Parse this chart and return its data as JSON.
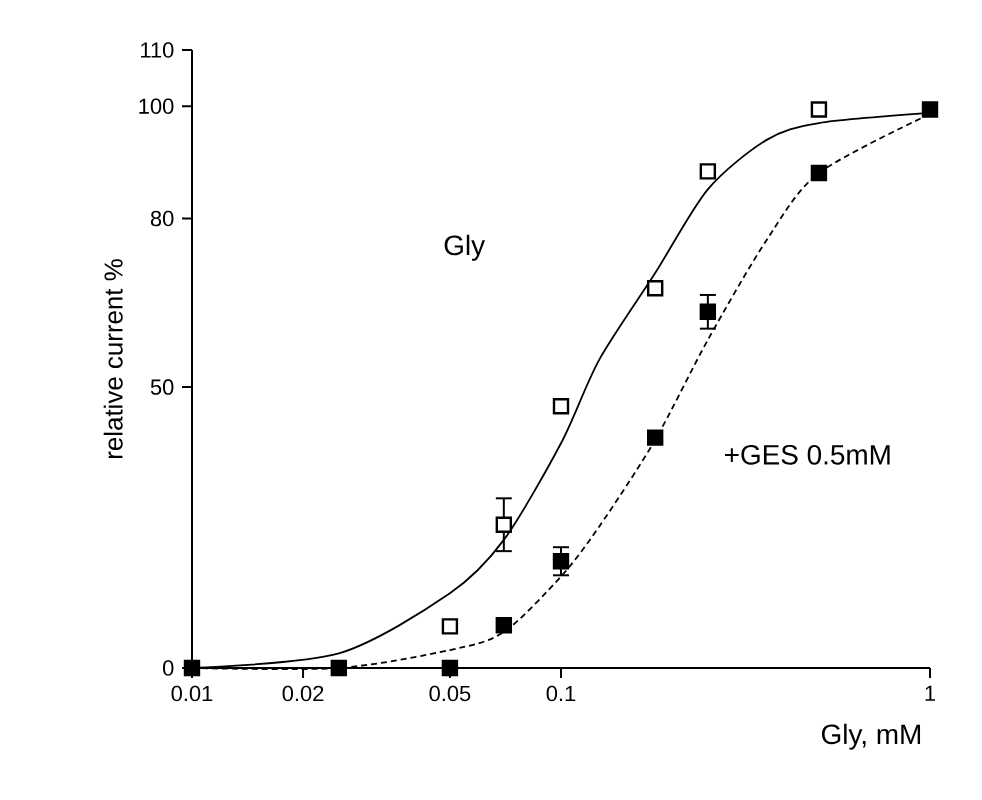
{
  "chart_data": {
    "type": "scatter",
    "xlabel": "Gly, mM",
    "ylabel": "relative current %",
    "log": "x",
    "xlim": [
      0.01,
      1
    ],
    "xticks": [
      0.01,
      0.02,
      0.05,
      0.1,
      1
    ],
    "ylim": [
      0,
      110
    ],
    "yticks": [
      0,
      50,
      80,
      100,
      110
    ],
    "grid": false,
    "marker": "square",
    "series": [
      {
        "type": "line",
        "marker": "none",
        "line_style": "solid",
        "color": "#000000",
        "x": [
          0.01,
          0.025,
          0.05,
          0.07,
          0.1,
          0.127,
          0.18,
          0.25,
          0.361,
          0.5,
          1
        ],
        "values": [
          0,
          2.6,
          13.3,
          22.8,
          40,
          54.9,
          70.3,
          85.2,
          94,
          97,
          98.8
        ]
      },
      {
        "type": "line",
        "name": "+GES 0.5mM",
        "marker": "none",
        "line_style": "dashed",
        "color": "#000000",
        "x": [
          0.01,
          0.025,
          0.05,
          0.07,
          0.1,
          0.127,
          0.18,
          0.25,
          0.361,
          0.5,
          1
        ],
        "values": [
          0,
          0,
          3.2,
          6.4,
          16.3,
          25.2,
          40.6,
          58.4,
          76.2,
          88.1,
          98.6
        ]
      },
      {
        "color": "#ffffff",
        "x": [
          0.05,
          0.07,
          0.1,
          0.18,
          0.25,
          0.5
        ],
        "values": [
          7.4,
          25.5,
          46.6,
          67.6,
          88.4,
          99.4
        ],
        "errors": [
          null,
          4.7,
          null,
          null,
          null,
          null
        ]
      },
      {
        "color": "#000000",
        "x": [
          0.01,
          0.025,
          0.05,
          0.07,
          0.1,
          0.18,
          0.25,
          0.5,
          1
        ],
        "values": [
          0,
          0,
          0,
          7.6,
          19.0,
          41.0,
          63.4,
          88.1,
          99.4
        ],
        "errors": [
          null,
          null,
          null,
          null,
          2.5,
          null,
          3,
          null,
          null
        ]
      }
    ],
    "annotations": [
      "Gly"
    ]
  }
}
